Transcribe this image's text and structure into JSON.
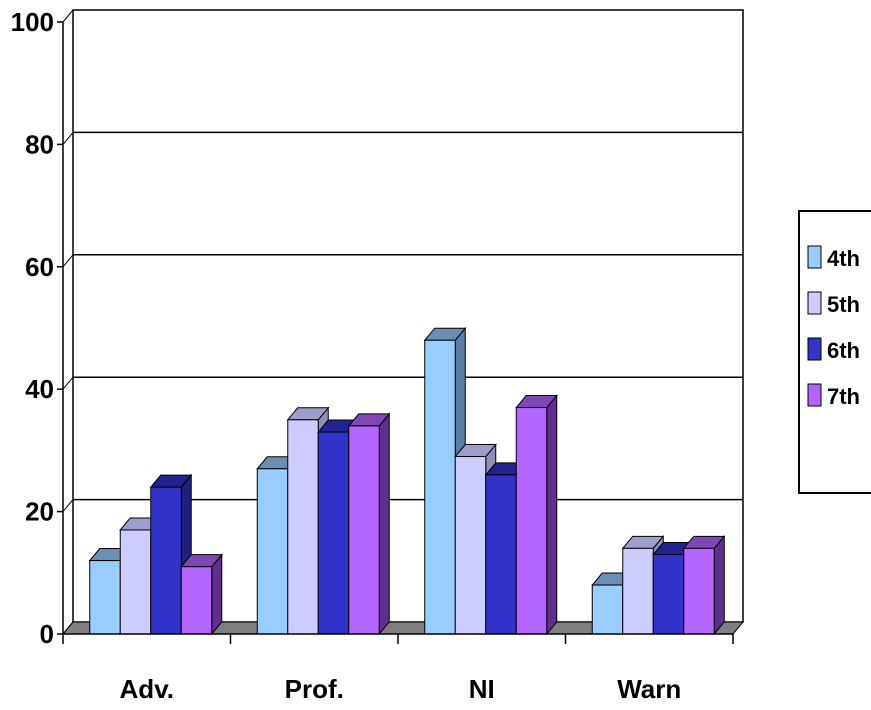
{
  "chart_data": {
    "type": "bar",
    "title": "",
    "xlabel": "",
    "ylabel": "",
    "ylim": [
      0,
      100
    ],
    "yticks": [
      0,
      20,
      40,
      60,
      80,
      100
    ],
    "grid": true,
    "legend_position": "right",
    "categories": [
      "Adv.",
      "Prof.",
      "NI",
      "Warn"
    ],
    "series": [
      {
        "name": "4th",
        "values": [
          12,
          27,
          48,
          8
        ],
        "color": "#99ccff",
        "top_color": "#6b8fb3",
        "side_color": "#5a7fa6"
      },
      {
        "name": "5th",
        "values": [
          17,
          35,
          29,
          14
        ],
        "color": "#ccccff",
        "top_color": "#9e9ecc",
        "side_color": "#8f8fb8"
      },
      {
        "name": "6th",
        "values": [
          24,
          33,
          26,
          13
        ],
        "color": "#3333cc",
        "top_color": "#23238f",
        "side_color": "#1f1f80"
      },
      {
        "name": "7th",
        "values": [
          11,
          34,
          37,
          14
        ],
        "color": "#b266ff",
        "top_color": "#7f47b3",
        "side_color": "#5e2f8f"
      }
    ]
  }
}
